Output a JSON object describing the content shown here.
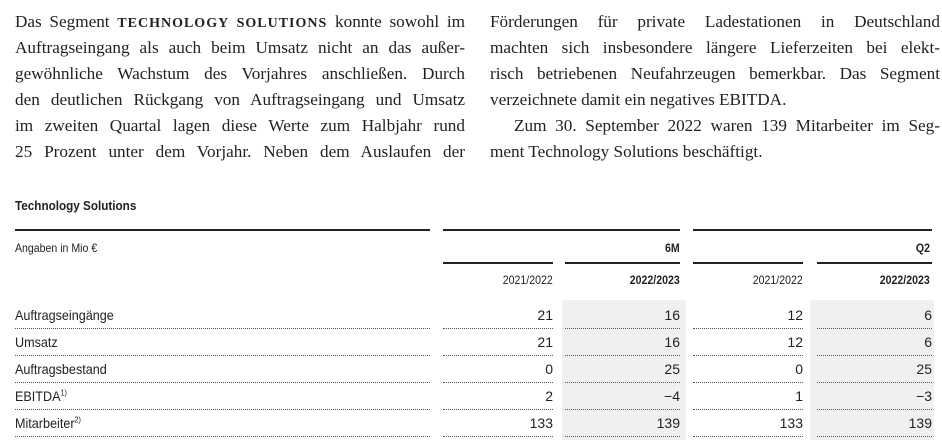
{
  "text_left": {
    "line1_pre": "Das Segment ",
    "line1_caps": "TECHNOLOGY SOLUTIONS",
    "line1_post": " konnte sowohl im",
    "lines": [
      "Auftragseingang als auch beim Umsatz nicht an das außer-",
      "gewöhnliche Wachstum des Vorjahres anschließen. Durch",
      "den deutlichen Rückgang von Auftragseingang und Umsatz",
      "im zweiten Quartal lagen diese Werte zum Halbjahr rund",
      "25 Prozent unter dem Vorjahr. Neben dem Auslaufen der"
    ]
  },
  "text_right": {
    "lines": [
      "Förderungen für private Ladestationen in Deutschland",
      "machten sich insbesondere längere Lieferzeiten bei elekt-",
      "risch betriebenen Neufahrzeugen bemerkbar. Das Segment",
      "verzeichnete damit ein negatives EBITDA.",
      "Zum 30. September 2022 waren 139 Mitarbeiter im Seg-",
      "ment Technology Solutions beschäftigt."
    ]
  },
  "table": {
    "title": "Technology Solutions",
    "unit": "Angaben in Mio €",
    "groups": [
      "6M",
      "Q2"
    ],
    "columns": [
      "2021/2022",
      "2022/2023",
      "2021/2022",
      "2022/2023"
    ],
    "rows": [
      {
        "label": "Auftragseingänge",
        "sup": "",
        "values": [
          "21",
          "16",
          "12",
          "6"
        ]
      },
      {
        "label": "Umsatz",
        "sup": "",
        "values": [
          "21",
          "16",
          "12",
          "6"
        ]
      },
      {
        "label": "Auftragsbestand",
        "sup": "",
        "values": [
          "0",
          "25",
          "0",
          "25"
        ]
      },
      {
        "label": "EBITDA",
        "sup": "1)",
        "values": [
          "2",
          "−4",
          "1",
          "−3"
        ]
      },
      {
        "label": "Mitarbeiter",
        "sup": "2)",
        "values": [
          "133",
          "139",
          "133",
          "139"
        ]
      }
    ]
  }
}
